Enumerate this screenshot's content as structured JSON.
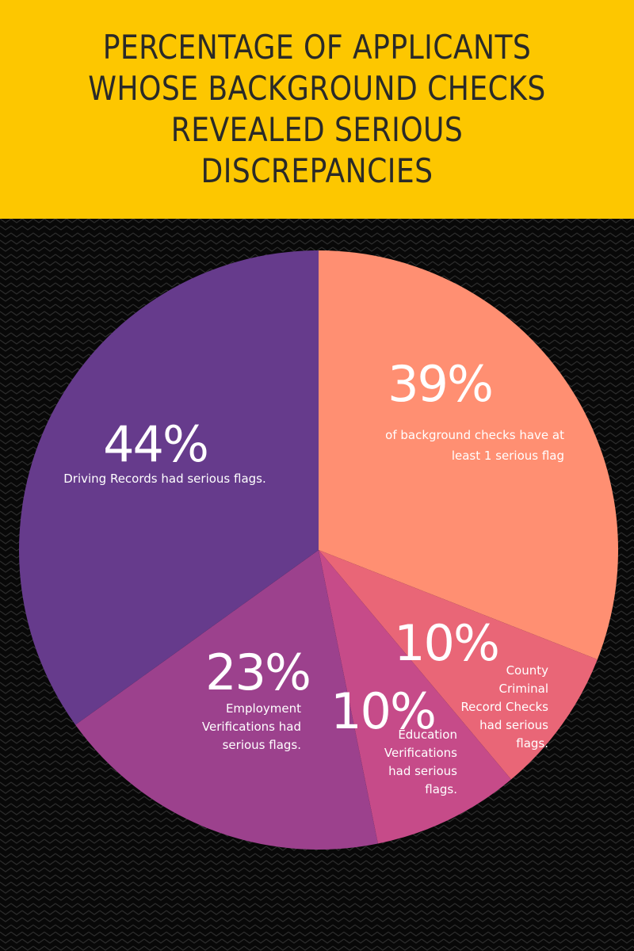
{
  "header": {
    "title": "PERCENTAGE OF APPLICANTS WHOSE BACKGROUND CHECKS REVEALED SERIOUS DISCREPANCIES",
    "background": "#fdc700",
    "text_color": "#2a2a28"
  },
  "background": {
    "color": "#080808",
    "pattern": "chevron"
  },
  "chart_data": {
    "type": "pie",
    "title": "PERCENTAGE OF APPLICANTS WHOSE BACKGROUND CHECKS REVEALED SERIOUS DISCREPANCIES",
    "start": "top",
    "direction": "clockwise",
    "slices": [
      {
        "value": 39,
        "label": "39%",
        "caption": [
          "of background checks have at",
          "least 1 serious flag"
        ],
        "color": "#ff8f72"
      },
      {
        "value": 10,
        "label": "10%",
        "caption": [
          "County",
          "Criminal",
          "Record Checks",
          "had serious",
          "flags."
        ],
        "color": "#e96677"
      },
      {
        "value": 10,
        "label": "10%",
        "caption": [
          "Education",
          "Verifications",
          "had serious",
          "flags."
        ],
        "color": "#c64b89"
      },
      {
        "value": 23,
        "label": "23%",
        "caption": [
          "Employment",
          "Verifications had",
          "serious flags."
        ],
        "color": "#9c418d"
      },
      {
        "value": 44,
        "label": "44%",
        "caption": [
          "Driving Records had serious flags."
        ],
        "color": "#663b8c"
      }
    ]
  }
}
